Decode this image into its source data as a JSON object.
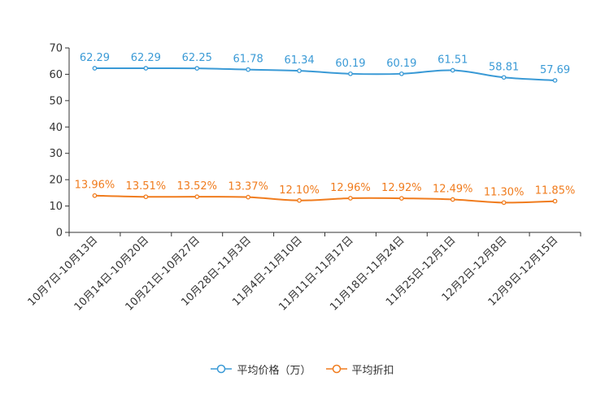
{
  "chart_data": {
    "type": "line",
    "title": "",
    "xlabel": "",
    "ylabel": "",
    "ylim": [
      0,
      70
    ],
    "yticks": [
      0,
      10,
      20,
      30,
      40,
      50,
      60,
      70
    ],
    "grid": false,
    "legend_position": "bottom-center",
    "categories": [
      "10月7日-10月13日",
      "10月14日-10月20日",
      "10月21日-10月27日",
      "10月28日-11月3日",
      "11月4日-11月10日",
      "11月11日-11月17日",
      "11月18日-11月24日",
      "11月25日-12月1日",
      "12月2日-12月8日",
      "12月9日-12月15日"
    ],
    "series": [
      {
        "name": "平均价格（万）",
        "color": "#3a9ad6",
        "values": [
          62.29,
          62.29,
          62.25,
          61.78,
          61.34,
          60.19,
          60.19,
          61.51,
          58.81,
          57.69
        ],
        "labels": [
          "62.29",
          "62.29",
          "62.25",
          "61.78",
          "61.34",
          "60.19",
          "60.19",
          "61.51",
          "58.81",
          "57.69"
        ]
      },
      {
        "name": "平均折扣",
        "color": "#f07c1e",
        "values": [
          13.96,
          13.51,
          13.52,
          13.37,
          12.1,
          12.96,
          12.92,
          12.49,
          11.3,
          11.85
        ],
        "labels": [
          "13.96%",
          "13.51%",
          "13.52%",
          "13.37%",
          "12.10%",
          "12.96%",
          "12.92%",
          "12.49%",
          "11.30%",
          "11.85%"
        ]
      }
    ]
  }
}
